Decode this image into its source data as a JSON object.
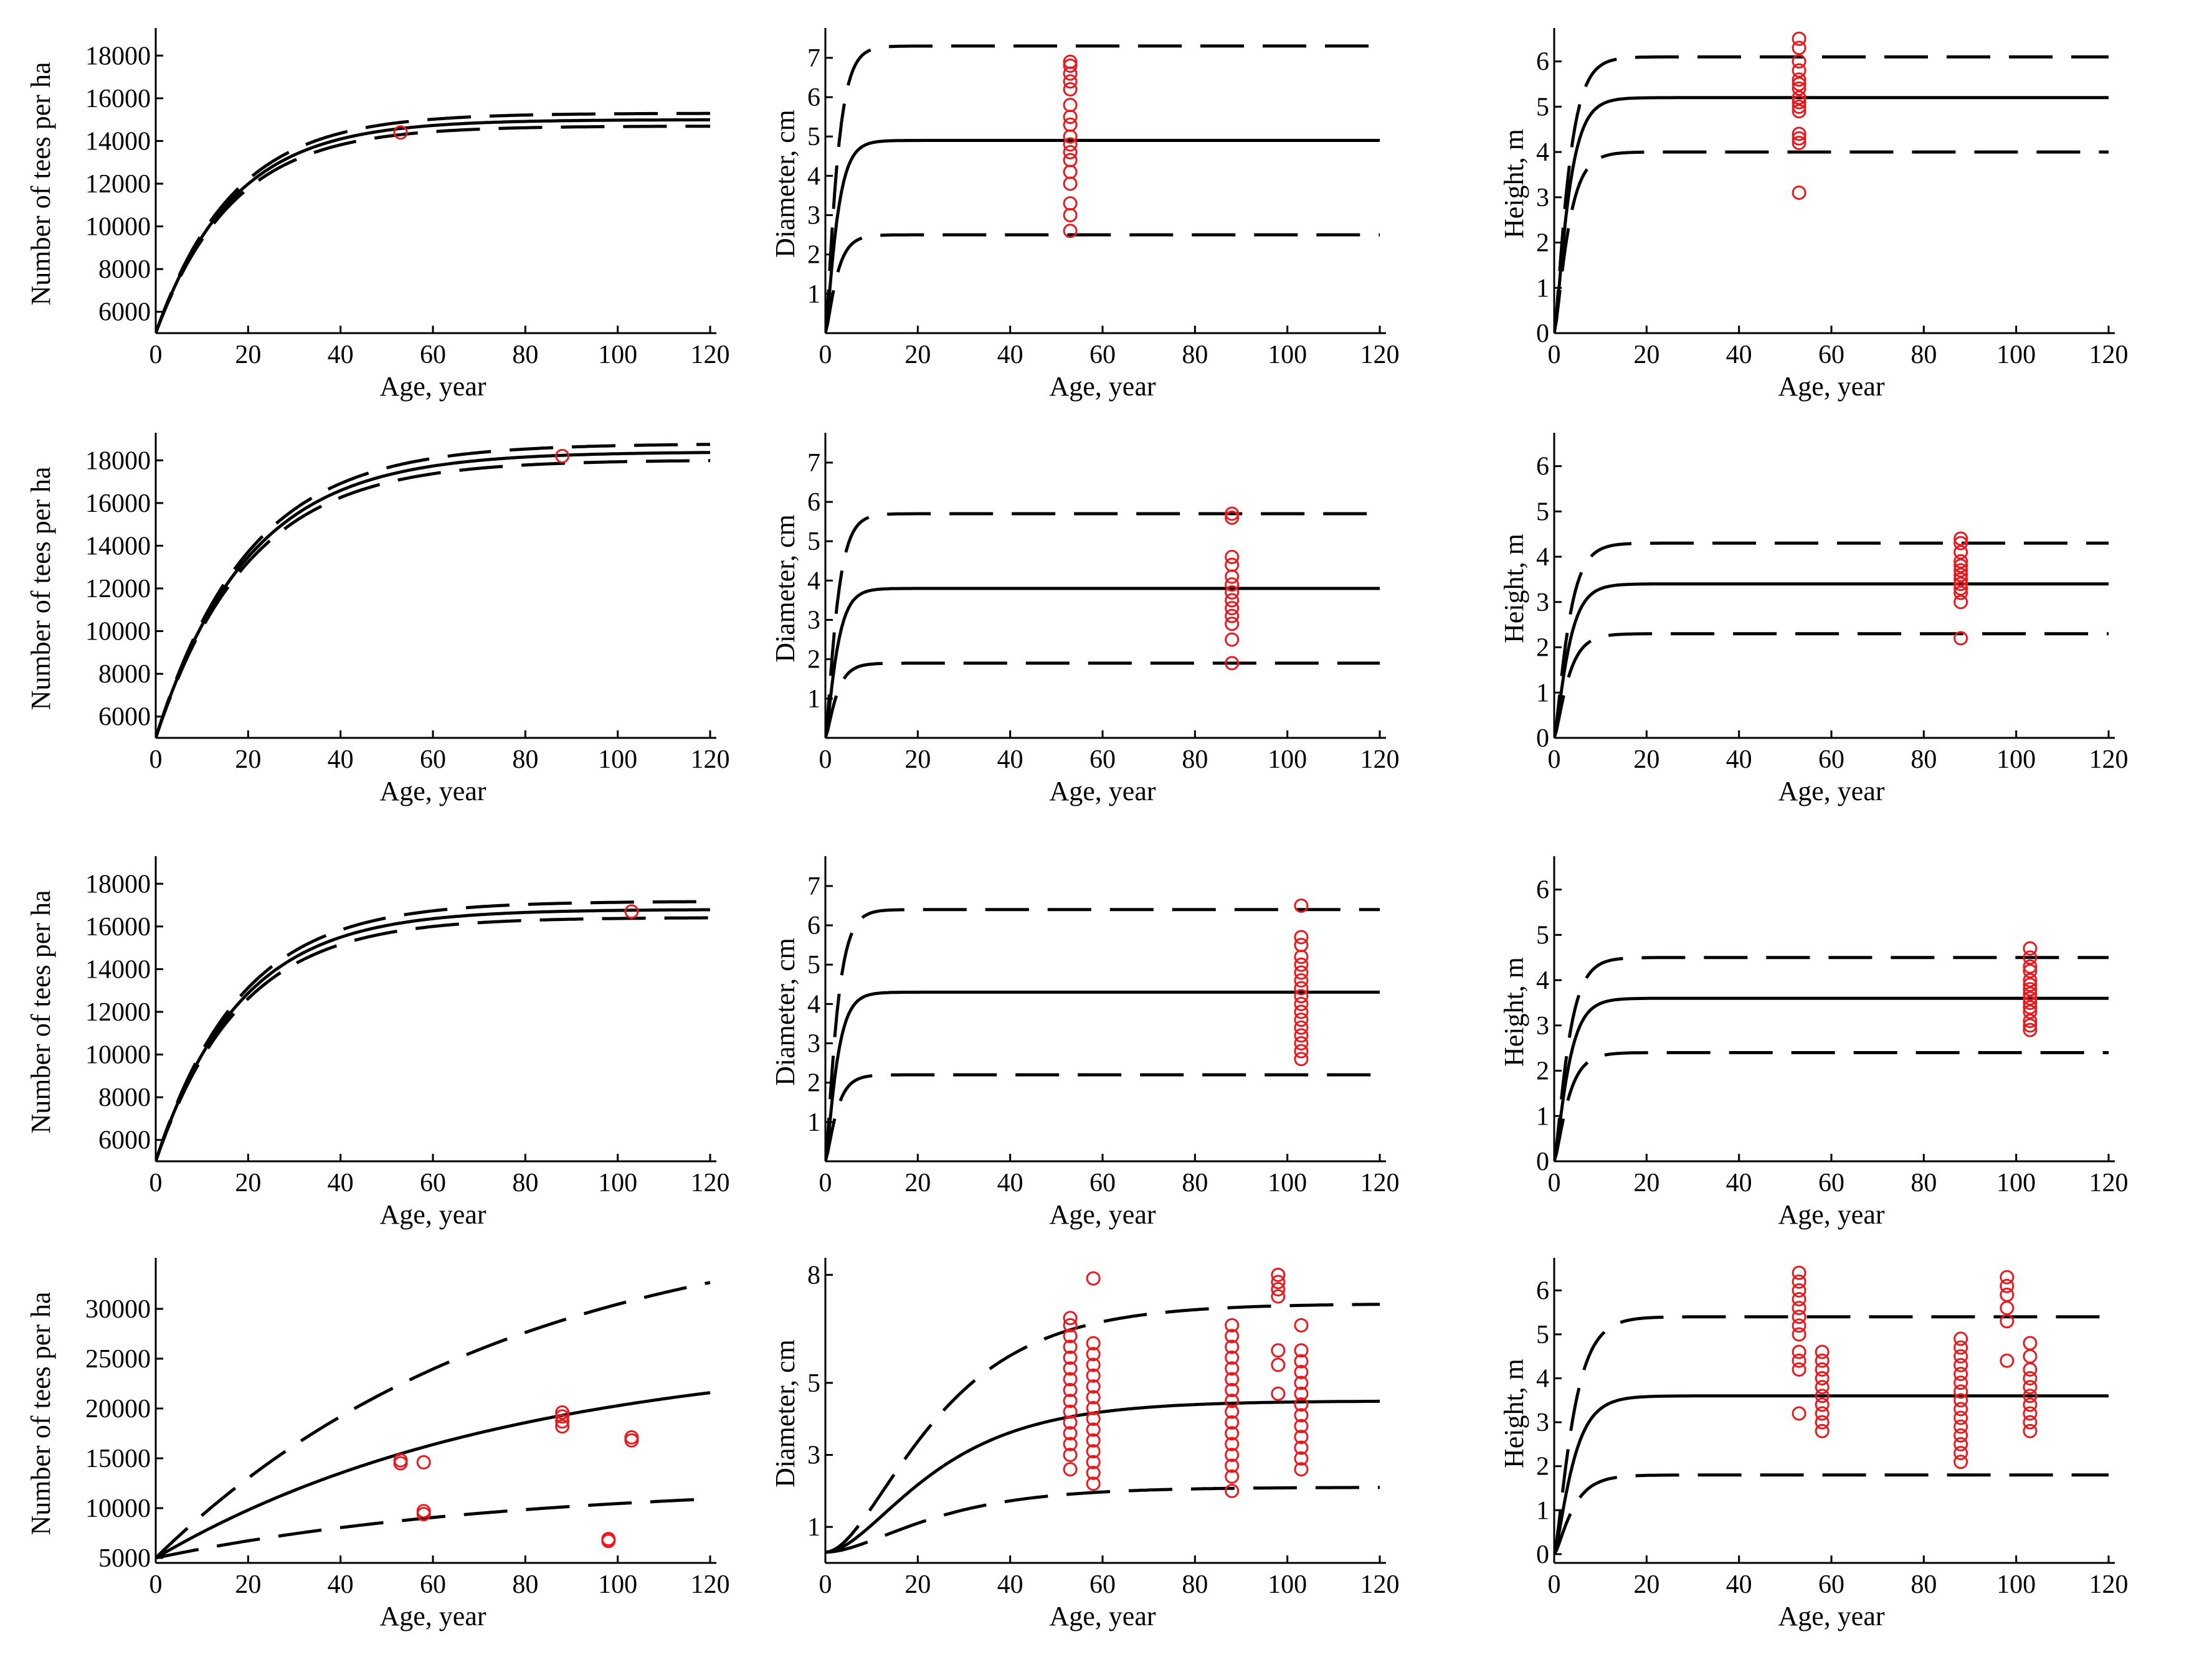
{
  "figure": {
    "rows": 4,
    "cols": 3,
    "colors": {
      "curve": "#000000",
      "observed": "#e8191e",
      "background": "#ffffff"
    }
  },
  "chart_data": [
    {
      "id": "p1-1",
      "type": "line",
      "xlabel": "Age, year",
      "ylabel": "Number of tees per ha",
      "xlim": [
        0,
        120
      ],
      "ylim": [
        5000,
        19000
      ],
      "xticks": [
        0,
        20,
        40,
        60,
        80,
        100,
        120
      ],
      "yticks": [
        6000,
        8000,
        10000,
        12000,
        14000,
        16000,
        18000
      ],
      "model": {
        "kind": "saturating",
        "y0": 5000,
        "asym": 15000,
        "k": 0.06,
        "band_asym": 300
      },
      "series": [
        {
          "name": "Mean",
          "style": "solid"
        },
        {
          "name": "Upper bound",
          "style": "dashed"
        },
        {
          "name": "Lower bound",
          "style": "dashed"
        }
      ],
      "observed": [
        {
          "age": 53,
          "values": [
            14400
          ]
        }
      ]
    },
    {
      "id": "p1-2",
      "type": "line",
      "xlabel": "Age, year",
      "ylabel": "Diameter, cm",
      "xlim": [
        0,
        120
      ],
      "ylim": [
        0,
        7.6
      ],
      "xticks": [
        0,
        20,
        40,
        60,
        80,
        100,
        120
      ],
      "yticks": [
        1,
        2,
        3,
        4,
        5,
        6,
        7
      ],
      "model": {
        "kind": "sigmoid",
        "mean": 4.9,
        "upper": 7.3,
        "lower": 2.5,
        "k": 0.5
      },
      "series": [
        {
          "name": "Mean",
          "style": "solid"
        },
        {
          "name": "Upper bound",
          "style": "dashed"
        },
        {
          "name": "Lower bound",
          "style": "dashed"
        }
      ],
      "observed": [
        {
          "age": 53,
          "values": [
            6.9,
            6.8,
            6.6,
            6.4,
            6.2,
            5.8,
            5.5,
            5.3,
            5.0,
            4.8,
            4.6,
            4.4,
            4.1,
            3.8,
            3.3,
            3.0,
            2.6
          ]
        }
      ]
    },
    {
      "id": "p1-3",
      "type": "line",
      "xlabel": "Age, year",
      "ylabel": "Height, m",
      "xlim": [
        0,
        120
      ],
      "ylim": [
        0,
        6.6
      ],
      "xticks": [
        0,
        20,
        40,
        60,
        80,
        100,
        120
      ],
      "yticks": [
        0,
        1,
        2,
        3,
        4,
        5,
        6
      ],
      "model": {
        "kind": "sigmoid",
        "mean": 5.2,
        "upper": 6.1,
        "lower": 4.0,
        "k": 0.4
      },
      "series": [
        {
          "name": "Mean",
          "style": "solid"
        },
        {
          "name": "Upper bound",
          "style": "dashed"
        },
        {
          "name": "Lower bound",
          "style": "dashed"
        }
      ],
      "observed": [
        {
          "age": 53,
          "values": [
            6.5,
            6.3,
            6.0,
            5.8,
            5.6,
            5.5,
            5.4,
            5.2,
            5.1,
            5.0,
            4.9,
            4.4,
            4.3,
            4.2,
            3.1
          ]
        }
      ]
    },
    {
      "id": "p2-1",
      "type": "line",
      "xlabel": "Age, year",
      "ylabel": "Number of tees per ha",
      "xlim": [
        0,
        120
      ],
      "ylim": [
        5000,
        19000
      ],
      "xticks": [
        0,
        20,
        40,
        60,
        80,
        100,
        120
      ],
      "yticks": [
        6000,
        8000,
        10000,
        12000,
        14000,
        16000,
        18000
      ],
      "model": {
        "kind": "saturating",
        "y0": 5000,
        "asym": 18400,
        "k": 0.05,
        "band_asym": 380
      },
      "series": [
        {
          "name": "Mean",
          "style": "solid"
        },
        {
          "name": "Upper bound",
          "style": "dashed"
        },
        {
          "name": "Lower bound",
          "style": "dashed"
        }
      ],
      "observed": [
        {
          "age": 88,
          "values": [
            18200
          ]
        }
      ]
    },
    {
      "id": "p2-2",
      "type": "line",
      "xlabel": "Age, year",
      "ylabel": "Diameter, cm",
      "xlim": [
        0,
        120
      ],
      "ylim": [
        0,
        7.6
      ],
      "xticks": [
        0,
        20,
        40,
        60,
        80,
        100,
        120
      ],
      "yticks": [
        1,
        2,
        3,
        4,
        5,
        6,
        7
      ],
      "model": {
        "kind": "sigmoid",
        "mean": 3.8,
        "upper": 5.7,
        "lower": 1.9,
        "k": 0.5
      },
      "series": [
        {
          "name": "Mean",
          "style": "solid"
        },
        {
          "name": "Upper bound",
          "style": "dashed"
        },
        {
          "name": "Lower bound",
          "style": "dashed"
        }
      ],
      "observed": [
        {
          "age": 88,
          "values": [
            5.7,
            5.6,
            4.6,
            4.4,
            4.1,
            3.9,
            3.7,
            3.5,
            3.3,
            3.1,
            2.9,
            2.5,
            1.9
          ]
        }
      ]
    },
    {
      "id": "p2-3",
      "type": "line",
      "xlabel": "Age, year",
      "ylabel": "Height, m",
      "xlim": [
        0,
        120
      ],
      "ylim": [
        0,
        6.6
      ],
      "xticks": [
        0,
        20,
        40,
        60,
        80,
        100,
        120
      ],
      "yticks": [
        0,
        1,
        2,
        3,
        4,
        5,
        6
      ],
      "model": {
        "kind": "sigmoid",
        "mean": 3.4,
        "upper": 4.3,
        "lower": 2.3,
        "k": 0.4
      },
      "series": [
        {
          "name": "Mean",
          "style": "solid"
        },
        {
          "name": "Upper bound",
          "style": "dashed"
        },
        {
          "name": "Lower bound",
          "style": "dashed"
        }
      ],
      "observed": [
        {
          "age": 88,
          "values": [
            4.4,
            4.3,
            4.1,
            3.9,
            3.8,
            3.7,
            3.6,
            3.5,
            3.4,
            3.3,
            3.2,
            3.0,
            2.2
          ]
        }
      ]
    },
    {
      "id": "p3-1",
      "type": "line",
      "xlabel": "Age, year",
      "ylabel": "Number of tees per ha",
      "xlim": [
        0,
        120
      ],
      "ylim": [
        5000,
        19000
      ],
      "xticks": [
        0,
        20,
        40,
        60,
        80,
        100,
        120
      ],
      "yticks": [
        6000,
        8000,
        10000,
        12000,
        14000,
        16000,
        18000
      ],
      "model": {
        "kind": "saturating",
        "y0": 5000,
        "asym": 16800,
        "k": 0.055,
        "band_asym": 380
      },
      "series": [
        {
          "name": "Mean",
          "style": "solid"
        },
        {
          "name": "Upper bound",
          "style": "dashed"
        },
        {
          "name": "Lower bound",
          "style": "dashed"
        }
      ],
      "observed": [
        {
          "age": 103,
          "values": [
            16700
          ]
        }
      ]
    },
    {
      "id": "p3-2",
      "type": "line",
      "xlabel": "Age, year",
      "ylabel": "Diameter, cm",
      "xlim": [
        0,
        120
      ],
      "ylim": [
        0,
        7.6
      ],
      "xticks": [
        0,
        20,
        40,
        60,
        80,
        100,
        120
      ],
      "yticks": [
        1,
        2,
        3,
        4,
        5,
        6,
        7
      ],
      "model": {
        "kind": "sigmoid",
        "mean": 4.3,
        "upper": 6.4,
        "lower": 2.2,
        "k": 0.5
      },
      "series": [
        {
          "name": "Mean",
          "style": "solid"
        },
        {
          "name": "Upper bound",
          "style": "dashed"
        },
        {
          "name": "Lower bound",
          "style": "dashed"
        }
      ],
      "observed": [
        {
          "age": 103,
          "values": [
            6.5,
            5.7,
            5.5,
            5.2,
            5.0,
            4.8,
            4.6,
            4.4,
            4.2,
            4.0,
            3.8,
            3.6,
            3.4,
            3.2,
            3.0,
            2.8,
            2.6
          ]
        }
      ]
    },
    {
      "id": "p3-3",
      "type": "line",
      "xlabel": "Age, year",
      "ylabel": "Height, m",
      "xlim": [
        0,
        120
      ],
      "ylim": [
        0,
        6.6
      ],
      "xticks": [
        0,
        20,
        40,
        60,
        80,
        100,
        120
      ],
      "yticks": [
        0,
        1,
        2,
        3,
        4,
        5,
        6
      ],
      "model": {
        "kind": "sigmoid",
        "mean": 3.6,
        "upper": 4.5,
        "lower": 2.4,
        "k": 0.4
      },
      "series": [
        {
          "name": "Mean",
          "style": "solid"
        },
        {
          "name": "Upper bound",
          "style": "dashed"
        },
        {
          "name": "Lower bound",
          "style": "dashed"
        }
      ],
      "observed": [
        {
          "age": 103,
          "values": [
            4.7,
            4.5,
            4.3,
            4.2,
            4.0,
            3.9,
            3.8,
            3.7,
            3.6,
            3.5,
            3.4,
            3.3,
            3.1,
            3.0,
            2.9
          ]
        }
      ]
    },
    {
      "id": "p4-1",
      "type": "line",
      "xlabel": "Age, year",
      "ylabel": "Number of tees per ha",
      "xlim": [
        0,
        120
      ],
      "ylim": [
        4500,
        34500
      ],
      "xticks": [
        0,
        20,
        40,
        60,
        80,
        100,
        120
      ],
      "yticks": [
        5000,
        10000,
        15000,
        20000,
        25000,
        30000
      ],
      "model": {
        "kind": "mixed",
        "y0": 5000,
        "mean_asym": 26000,
        "upper_asym": 40000,
        "lower_asym": 12500,
        "k": 0.013
      },
      "series": [
        {
          "name": "Mean",
          "style": "solid"
        },
        {
          "name": "Upper bound",
          "style": "dashed"
        },
        {
          "name": "Lower bound",
          "style": "dashed"
        }
      ],
      "observed": [
        {
          "age": 53,
          "values": [
            14500,
            14800
          ]
        },
        {
          "age": 58,
          "values": [
            14600,
            9400,
            9700
          ]
        },
        {
          "age": 88,
          "values": [
            18200,
            18700,
            19200,
            19600
          ]
        },
        {
          "age": 98,
          "values": [
            6700,
            6900
          ]
        },
        {
          "age": 103,
          "values": [
            16800,
            17100
          ]
        }
      ]
    },
    {
      "id": "p4-2",
      "type": "line",
      "xlabel": "Age, year",
      "ylabel": "Diameter, cm",
      "xlim": [
        0,
        120
      ],
      "ylim": [
        0,
        8.3
      ],
      "xticks": [
        0,
        20,
        40,
        60,
        80,
        100,
        120
      ],
      "yticks": [
        1,
        3,
        5,
        8
      ],
      "model": {
        "kind": "mixed",
        "y0": 0.3,
        "mean_asym": 4.5,
        "upper_asym": 7.2,
        "lower_asym": 2.1,
        "k": 0.055,
        "sigmoid": true
      },
      "series": [
        {
          "name": "Mean",
          "style": "solid"
        },
        {
          "name": "Upper bound",
          "style": "dashed"
        },
        {
          "name": "Lower bound",
          "style": "dashed"
        }
      ],
      "observed": [
        {
          "age": 53,
          "values": [
            6.8,
            6.6,
            6.3,
            6.0,
            5.7,
            5.4,
            5.1,
            4.8,
            4.5,
            4.2,
            3.9,
            3.6,
            3.3,
            3.0,
            2.6
          ]
        },
        {
          "age": 58,
          "values": [
            7.9,
            6.1,
            5.8,
            5.5,
            5.2,
            4.9,
            4.6,
            4.3,
            4.0,
            3.7,
            3.4,
            3.1,
            2.8,
            2.5,
            2.2
          ]
        },
        {
          "age": 88,
          "values": [
            6.6,
            6.3,
            6.0,
            5.7,
            5.4,
            5.1,
            4.8,
            4.5,
            4.2,
            3.9,
            3.6,
            3.3,
            3.0,
            2.7,
            2.4,
            2.0
          ]
        },
        {
          "age": 98,
          "values": [
            8.0,
            7.8,
            7.6,
            7.4,
            5.9,
            5.5,
            4.7
          ]
        },
        {
          "age": 103,
          "values": [
            6.6,
            5.9,
            5.6,
            5.3,
            5.0,
            4.7,
            4.4,
            4.1,
            3.8,
            3.5,
            3.2,
            2.9,
            2.6
          ]
        }
      ]
    },
    {
      "id": "p4-3",
      "type": "line",
      "xlabel": "Age, year",
      "ylabel": "Height, m",
      "xlim": [
        0,
        120
      ],
      "ylim": [
        -0.2,
        6.6
      ],
      "xticks": [
        0,
        20,
        40,
        60,
        80,
        100,
        120
      ],
      "yticks": [
        0,
        1,
        2,
        3,
        4,
        5,
        6
      ],
      "model": {
        "kind": "sigmoid",
        "mean": 3.6,
        "upper": 5.4,
        "lower": 1.8,
        "k": 0.3
      },
      "series": [
        {
          "name": "Mean",
          "style": "solid"
        },
        {
          "name": "Upper bound",
          "style": "dashed"
        },
        {
          "name": "Lower bound",
          "style": "dashed"
        }
      ],
      "observed": [
        {
          "age": 53,
          "values": [
            6.4,
            6.2,
            6.0,
            5.8,
            5.6,
            5.4,
            5.2,
            5.0,
            4.6,
            4.4,
            4.2,
            3.2
          ]
        },
        {
          "age": 58,
          "values": [
            4.6,
            4.4,
            4.2,
            4.0,
            3.8,
            3.6,
            3.4,
            3.2,
            3.0,
            2.8
          ]
        },
        {
          "age": 88,
          "values": [
            4.9,
            4.7,
            4.5,
            4.3,
            4.1,
            3.9,
            3.7,
            3.5,
            3.3,
            3.1,
            2.9,
            2.7,
            2.5,
            2.3,
            2.1
          ]
        },
        {
          "age": 98,
          "values": [
            6.3,
            6.1,
            5.9,
            5.6,
            5.3,
            4.4
          ]
        },
        {
          "age": 103,
          "values": [
            4.8,
            4.5,
            4.2,
            4.0,
            3.8,
            3.6,
            3.4,
            3.2,
            3.0,
            2.8
          ]
        }
      ]
    }
  ]
}
